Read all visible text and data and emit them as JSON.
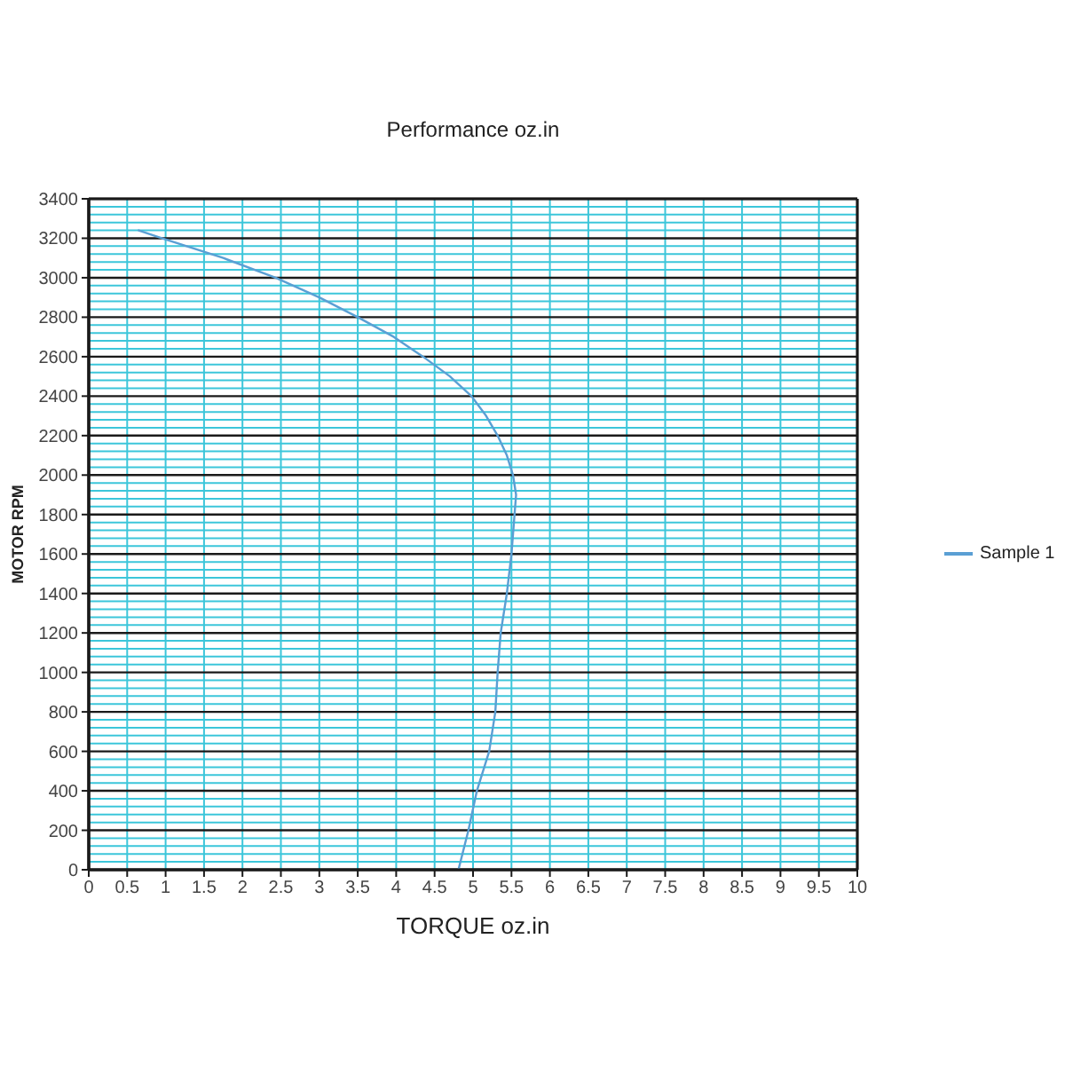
{
  "chart_data": {
    "type": "line",
    "title": "Performance oz.in",
    "xlabel": "TORQUE oz.in",
    "ylabel": "MOTOR RPM",
    "series": [
      {
        "name": "Sample 1",
        "color": "#5a9fd4",
        "x": [
          0.65,
          0.95,
          1.75,
          2.43,
          3.0,
          3.5,
          3.97,
          4.35,
          4.7,
          4.98,
          5.17,
          5.32,
          5.44,
          5.52,
          5.56,
          5.54,
          5.52,
          5.5,
          5.44,
          5.36,
          5.32,
          5.29,
          5.21,
          5.05,
          4.94,
          4.81
        ],
        "values": [
          3240,
          3200,
          3100,
          3000,
          2900,
          2800,
          2700,
          2600,
          2500,
          2400,
          2300,
          2200,
          2100,
          2000,
          1900,
          1800,
          1700,
          1600,
          1400,
          1200,
          1000,
          800,
          600,
          400,
          200,
          0
        ]
      }
    ],
    "xlim": [
      0,
      10
    ],
    "xticks": [
      0,
      0.5,
      1,
      1.5,
      2,
      2.5,
      3,
      3.5,
      4,
      4.5,
      5,
      5.5,
      6,
      6.5,
      7,
      7.5,
      8,
      8.5,
      9,
      9.5,
      10
    ],
    "ylim": [
      0,
      3400
    ],
    "yticks": [
      0,
      {
        "value": 40,
        "label": null
      },
      {
        "value": 80,
        "label": null
      },
      {
        "value": 120,
        "label": null
      },
      {
        "value": 160,
        "label": null
      },
      200,
      {
        "value": 240,
        "label": null
      },
      {
        "value": 280,
        "label": null
      },
      {
        "value": 320,
        "label": null
      },
      {
        "value": 360,
        "label": null
      },
      400,
      {
        "value": 440,
        "label": null
      },
      {
        "value": 480,
        "label": null
      },
      {
        "value": 520,
        "label": null
      },
      {
        "value": 560,
        "label": null
      },
      600,
      {
        "value": 640,
        "label": null
      },
      {
        "value": 680,
        "label": null
      },
      {
        "value": 720,
        "label": null
      },
      {
        "value": 760,
        "label": null
      },
      800,
      {
        "value": 840,
        "label": null
      },
      {
        "value": 880,
        "label": null
      },
      {
        "value": 920,
        "label": null
      },
      {
        "value": 960,
        "label": null
      },
      1000,
      {
        "value": 1040,
        "label": null
      },
      {
        "value": 1080,
        "label": null
      },
      {
        "value": 1120,
        "label": null
      },
      {
        "value": 1160,
        "label": null
      },
      1200,
      {
        "value": 1240,
        "label": null
      },
      {
        "value": 1280,
        "label": null
      },
      {
        "value": 1320,
        "label": null
      },
      {
        "value": 1360,
        "label": null
      },
      1400,
      {
        "value": 1440,
        "label": null
      },
      {
        "value": 1480,
        "label": null
      },
      {
        "value": 1520,
        "label": null
      },
      {
        "value": 1560,
        "label": null
      },
      1600,
      {
        "value": 1640,
        "label": null
      },
      {
        "value": 1680,
        "label": null
      },
      {
        "value": 1720,
        "label": null
      },
      {
        "value": 1760,
        "label": null
      },
      1800,
      {
        "value": 1840,
        "label": null
      },
      {
        "value": 1880,
        "label": null
      },
      {
        "value": 1920,
        "label": null
      },
      {
        "value": 1960,
        "label": null
      },
      2000,
      {
        "value": 2040,
        "label": null
      },
      {
        "value": 2080,
        "label": null
      },
      {
        "value": 2120,
        "label": null
      },
      {
        "value": 2160,
        "label": null
      },
      2200,
      {
        "value": 2240,
        "label": null
      },
      {
        "value": 2280,
        "label": null
      },
      {
        "value": 2320,
        "label": null
      },
      {
        "value": 2360,
        "label": null
      },
      2400,
      {
        "value": 2440,
        "label": null
      },
      {
        "value": 2480,
        "label": null
      },
      {
        "value": 2520,
        "label": null
      },
      {
        "value": 2560,
        "label": null
      },
      2600,
      {
        "value": 2640,
        "label": null
      },
      {
        "value": 2680,
        "label": null
      },
      {
        "value": 2720,
        "label": null
      },
      {
        "value": 2760,
        "label": null
      },
      2800,
      {
        "value": 2840,
        "label": null
      },
      {
        "value": 2880,
        "label": null
      },
      {
        "value": 2920,
        "label": null
      },
      {
        "value": 2960,
        "label": null
      },
      3000,
      {
        "value": 3040,
        "label": null
      },
      {
        "value": 3080,
        "label": null
      },
      {
        "value": 3120,
        "label": null
      },
      {
        "value": 3160,
        "label": null
      },
      3200,
      {
        "value": 3240,
        "label": null
      },
      {
        "value": 3280,
        "label": null
      },
      {
        "value": 3320,
        "label": null
      },
      {
        "value": 3360,
        "label": null
      },
      3400
    ],
    "grid": true,
    "legend": "right"
  }
}
